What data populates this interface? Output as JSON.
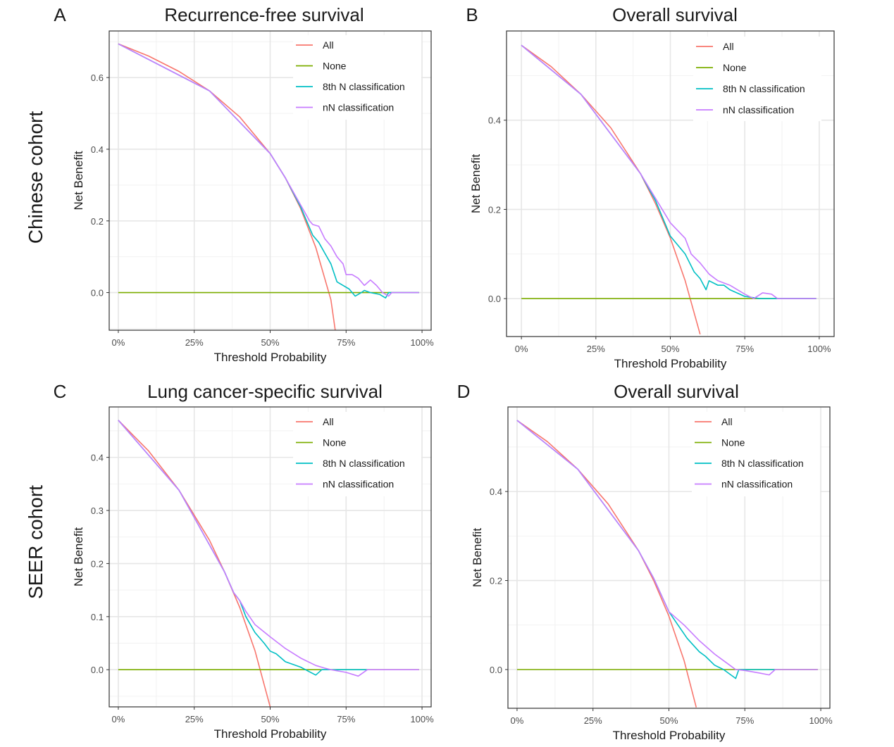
{
  "row_labels": [
    "Chinese cohort",
    "SEER cohort"
  ],
  "legend": [
    {
      "label": "All",
      "color": "#F8766D"
    },
    {
      "label": "None",
      "color": "#7CAE00"
    },
    {
      "label": "8th N classification",
      "color": "#00BFC4"
    },
    {
      "label": "nN classification",
      "color": "#C77CFF"
    }
  ],
  "chart_data": [
    {
      "panel": "A",
      "type": "line",
      "title": "Recurrence-free survival",
      "xlabel": "Threshold Probability",
      "ylabel": "Net Benefit",
      "x_ticks": [
        "0%",
        "25%",
        "50%",
        "75%",
        "100%"
      ],
      "y_ticks": [
        "0.0",
        "0.2",
        "0.4",
        "0.6"
      ],
      "xlim": [
        -0.03,
        1.03
      ],
      "ylim": [
        -0.105,
        0.73
      ],
      "grid": true,
      "legend_position": "top-right",
      "series": [
        {
          "name": "All",
          "points": [
            [
              0,
              0.694
            ],
            [
              0.1,
              0.66
            ],
            [
              0.2,
              0.617
            ],
            [
              0.3,
              0.563
            ],
            [
              0.4,
              0.49
            ],
            [
              0.5,
              0.388
            ],
            [
              0.55,
              0.32
            ],
            [
              0.6,
              0.235
            ],
            [
              0.65,
              0.126
            ],
            [
              0.7,
              -0.02
            ],
            [
              0.715,
              -0.11
            ]
          ]
        },
        {
          "name": "None",
          "points": [
            [
              0,
              0
            ],
            [
              0.99,
              0
            ]
          ]
        },
        {
          "name": "8th N classification",
          "points": [
            [
              0,
              0.694
            ],
            [
              0.3,
              0.563
            ],
            [
              0.5,
              0.388
            ],
            [
              0.55,
              0.32
            ],
            [
              0.6,
              0.24
            ],
            [
              0.62,
              0.2
            ],
            [
              0.64,
              0.16
            ],
            [
              0.66,
              0.14
            ],
            [
              0.68,
              0.11
            ],
            [
              0.7,
              0.08
            ],
            [
              0.72,
              0.03
            ],
            [
              0.74,
              0.02
            ],
            [
              0.76,
              0.01
            ],
            [
              0.78,
              -0.01
            ],
            [
              0.8,
              0.0
            ],
            [
              0.81,
              0.006
            ],
            [
              0.83,
              0.0
            ],
            [
              0.86,
              -0.005
            ],
            [
              0.88,
              -0.015
            ],
            [
              0.89,
              0.0
            ],
            [
              0.99,
              0.0
            ]
          ]
        },
        {
          "name": "nN classification",
          "points": [
            [
              0,
              0.694
            ],
            [
              0.3,
              0.563
            ],
            [
              0.5,
              0.388
            ],
            [
              0.55,
              0.32
            ],
            [
              0.6,
              0.245
            ],
            [
              0.63,
              0.2
            ],
            [
              0.64,
              0.19
            ],
            [
              0.66,
              0.185
            ],
            [
              0.68,
              0.15
            ],
            [
              0.7,
              0.13
            ],
            [
              0.72,
              0.1
            ],
            [
              0.74,
              0.08
            ],
            [
              0.75,
              0.05
            ],
            [
              0.77,
              0.05
            ],
            [
              0.79,
              0.04
            ],
            [
              0.81,
              0.02
            ],
            [
              0.83,
              0.035
            ],
            [
              0.85,
              0.02
            ],
            [
              0.87,
              0.0
            ],
            [
              0.89,
              -0.01
            ],
            [
              0.9,
              0.0
            ],
            [
              0.99,
              0.0
            ]
          ]
        }
      ]
    },
    {
      "panel": "B",
      "type": "line",
      "title": "Overall survival",
      "xlabel": "Threshold Probability",
      "ylabel": "Net Benefit",
      "x_ticks": [
        "0%",
        "25%",
        "50%",
        "75%",
        "100%"
      ],
      "y_ticks": [
        "0.0",
        "0.2",
        "0.4"
      ],
      "xlim": [
        -0.05,
        1.05
      ],
      "ylim": [
        -0.085,
        0.6
      ],
      "grid": true,
      "legend_position": "top-right",
      "series": [
        {
          "name": "All",
          "points": [
            [
              0,
              0.568
            ],
            [
              0.1,
              0.52
            ],
            [
              0.2,
              0.458
            ],
            [
              0.3,
              0.383
            ],
            [
              0.4,
              0.28
            ],
            [
              0.45,
              0.213
            ],
            [
              0.5,
              0.136
            ],
            [
              0.55,
              0.04
            ],
            [
              0.6,
              -0.08
            ]
          ]
        },
        {
          "name": "None",
          "points": [
            [
              0,
              0
            ],
            [
              0.99,
              0
            ]
          ]
        },
        {
          "name": "8th N classification",
          "points": [
            [
              0,
              0.568
            ],
            [
              0.2,
              0.458
            ],
            [
              0.4,
              0.28
            ],
            [
              0.45,
              0.22
            ],
            [
              0.5,
              0.14
            ],
            [
              0.55,
              0.1
            ],
            [
              0.58,
              0.06
            ],
            [
              0.6,
              0.045
            ],
            [
              0.62,
              0.02
            ],
            [
              0.63,
              0.04
            ],
            [
              0.66,
              0.03
            ],
            [
              0.68,
              0.03
            ],
            [
              0.7,
              0.02
            ],
            [
              0.75,
              0.005
            ],
            [
              0.8,
              0.0
            ],
            [
              0.99,
              0.0
            ]
          ]
        },
        {
          "name": "nN classification",
          "points": [
            [
              0,
              0.568
            ],
            [
              0.2,
              0.458
            ],
            [
              0.4,
              0.28
            ],
            [
              0.45,
              0.225
            ],
            [
              0.5,
              0.17
            ],
            [
              0.55,
              0.135
            ],
            [
              0.57,
              0.1
            ],
            [
              0.6,
              0.08
            ],
            [
              0.63,
              0.055
            ],
            [
              0.66,
              0.04
            ],
            [
              0.7,
              0.03
            ],
            [
              0.75,
              0.01
            ],
            [
              0.78,
              0.0
            ],
            [
              0.81,
              0.013
            ],
            [
              0.84,
              0.01
            ],
            [
              0.86,
              0.0
            ],
            [
              0.99,
              0.0
            ]
          ]
        }
      ]
    },
    {
      "panel": "C",
      "type": "line",
      "title": "Lung cancer-specific survival",
      "xlabel": "Threshold Probability",
      "ylabel": "Net Benefit",
      "x_ticks": [
        "0%",
        "25%",
        "50%",
        "75%",
        "100%"
      ],
      "y_ticks": [
        "0.0",
        "0.1",
        "0.2",
        "0.3",
        "0.4"
      ],
      "xlim": [
        -0.03,
        1.03
      ],
      "ylim": [
        -0.07,
        0.495
      ],
      "grid": true,
      "legend_position": "top-right",
      "series": [
        {
          "name": "All",
          "points": [
            [
              0,
              0.47
            ],
            [
              0.1,
              0.412
            ],
            [
              0.2,
              0.338
            ],
            [
              0.3,
              0.244
            ],
            [
              0.35,
              0.184
            ],
            [
              0.4,
              0.117
            ],
            [
              0.45,
              0.036
            ],
            [
              0.5,
              -0.07
            ]
          ]
        },
        {
          "name": "None",
          "points": [
            [
              0,
              0
            ],
            [
              0.99,
              0
            ]
          ]
        },
        {
          "name": "8th N classification",
          "points": [
            [
              0,
              0.47
            ],
            [
              0.2,
              0.338
            ],
            [
              0.35,
              0.184
            ],
            [
              0.38,
              0.145
            ],
            [
              0.4,
              0.13
            ],
            [
              0.42,
              0.1
            ],
            [
              0.45,
              0.07
            ],
            [
              0.48,
              0.05
            ],
            [
              0.5,
              0.035
            ],
            [
              0.52,
              0.03
            ],
            [
              0.55,
              0.015
            ],
            [
              0.6,
              0.005
            ],
            [
              0.65,
              -0.01
            ],
            [
              0.67,
              0.0
            ],
            [
              0.7,
              0.0
            ],
            [
              0.75,
              0.0
            ],
            [
              0.8,
              0.0
            ],
            [
              0.82,
              0.0
            ]
          ]
        },
        {
          "name": "nN classification",
          "points": [
            [
              0,
              0.47
            ],
            [
              0.2,
              0.338
            ],
            [
              0.35,
              0.184
            ],
            [
              0.38,
              0.145
            ],
            [
              0.4,
              0.13
            ],
            [
              0.42,
              0.11
            ],
            [
              0.45,
              0.085
            ],
            [
              0.5,
              0.062
            ],
            [
              0.55,
              0.04
            ],
            [
              0.6,
              0.022
            ],
            [
              0.65,
              0.008
            ],
            [
              0.68,
              0.003
            ],
            [
              0.7,
              0.0
            ],
            [
              0.75,
              -0.005
            ],
            [
              0.79,
              -0.012
            ],
            [
              0.82,
              0.0
            ],
            [
              0.99,
              0.0
            ]
          ]
        }
      ]
    },
    {
      "panel": "D",
      "type": "line",
      "title": "Overall survival",
      "xlabel": "Threshold Probability",
      "ylabel": "Net Benefit",
      "x_ticks": [
        "0%",
        "25%",
        "50%",
        "75%",
        "100%"
      ],
      "y_ticks": [
        "0.0",
        "0.2",
        "0.4"
      ],
      "xlim": [
        -0.03,
        1.03
      ],
      "ylim": [
        -0.087,
        0.59
      ],
      "grid": true,
      "legend_position": "top-right",
      "series": [
        {
          "name": "All",
          "points": [
            [
              0,
              0.56
            ],
            [
              0.1,
              0.512
            ],
            [
              0.2,
              0.45
            ],
            [
              0.3,
              0.372
            ],
            [
              0.4,
              0.267
            ],
            [
              0.45,
              0.2
            ],
            [
              0.5,
              0.12
            ],
            [
              0.55,
              0.02
            ],
            [
              0.59,
              -0.085
            ]
          ]
        },
        {
          "name": "None",
          "points": [
            [
              0,
              0
            ],
            [
              0.99,
              0
            ]
          ]
        },
        {
          "name": "8th N classification",
          "points": [
            [
              0,
              0.56
            ],
            [
              0.2,
              0.45
            ],
            [
              0.4,
              0.267
            ],
            [
              0.45,
              0.205
            ],
            [
              0.5,
              0.13
            ],
            [
              0.53,
              0.1
            ],
            [
              0.56,
              0.07
            ],
            [
              0.6,
              0.04
            ],
            [
              0.62,
              0.03
            ],
            [
              0.65,
              0.01
            ],
            [
              0.68,
              0.0
            ],
            [
              0.72,
              -0.02
            ],
            [
              0.73,
              0.0
            ],
            [
              0.77,
              0.0
            ],
            [
              0.8,
              0.0
            ],
            [
              0.85,
              0.0
            ]
          ]
        },
        {
          "name": "nN classification",
          "points": [
            [
              0,
              0.56
            ],
            [
              0.2,
              0.45
            ],
            [
              0.4,
              0.267
            ],
            [
              0.45,
              0.205
            ],
            [
              0.5,
              0.13
            ],
            [
              0.55,
              0.1
            ],
            [
              0.6,
              0.065
            ],
            [
              0.65,
              0.035
            ],
            [
              0.7,
              0.01
            ],
            [
              0.72,
              0.0
            ],
            [
              0.75,
              -0.002
            ],
            [
              0.8,
              -0.008
            ],
            [
              0.83,
              -0.012
            ],
            [
              0.85,
              0.0
            ],
            [
              0.99,
              0.0
            ]
          ]
        }
      ]
    }
  ]
}
